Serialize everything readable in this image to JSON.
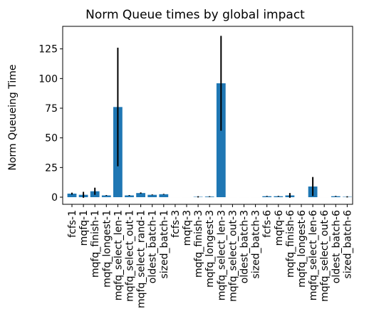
{
  "chart_data": {
    "type": "bar",
    "title": "Norm Queue times by global impact",
    "xlabel": "",
    "ylabel": "Norm Queueing Time",
    "ylim": [
      -6,
      144
    ],
    "yticks": [
      0,
      25,
      50,
      75,
      100,
      125
    ],
    "grid": false,
    "legend": "none",
    "bar_color": "#1f77b4",
    "error_color": "#000000",
    "categories": [
      "fcfs-1",
      "mqfq-1",
      "mqfq_finish-1",
      "mqfq_longest-1",
      "mqfq_select_len-1",
      "mqfq_select_out-1",
      "mqfq_select_rand-1",
      "oldest_batch-1",
      "sized_batch-1",
      "fcfs-3",
      "mqfq-3",
      "mqfq_finish-3",
      "mqfq_longest-3",
      "mqfq_select_len-3",
      "mqfq_select_out-3",
      "oldest_batch-3",
      "sized_batch-3",
      "fcfs-6",
      "mqfq-6",
      "mqfq_finish-6",
      "mqfq_longest-6",
      "mqfq_select_len-6",
      "mqfq_select_out-6",
      "oldest_batch-6",
      "sized_batch-6"
    ],
    "values": [
      3,
      2,
      5,
      1.5,
      76,
      1.5,
      3.5,
      2,
      2.5,
      0,
      0,
      0.3,
      0.5,
      96,
      0,
      0,
      0,
      0.8,
      0.8,
      1.5,
      0,
      9,
      0,
      0.8,
      0.3
    ],
    "errors": [
      0.8,
      2.5,
      3,
      0.3,
      50,
      0.3,
      0.5,
      0.3,
      0.3,
      0,
      0,
      0.5,
      0.3,
      40,
      0,
      0,
      0,
      0.3,
      0.3,
      2,
      0,
      8,
      0,
      0.3,
      0.5
    ]
  }
}
